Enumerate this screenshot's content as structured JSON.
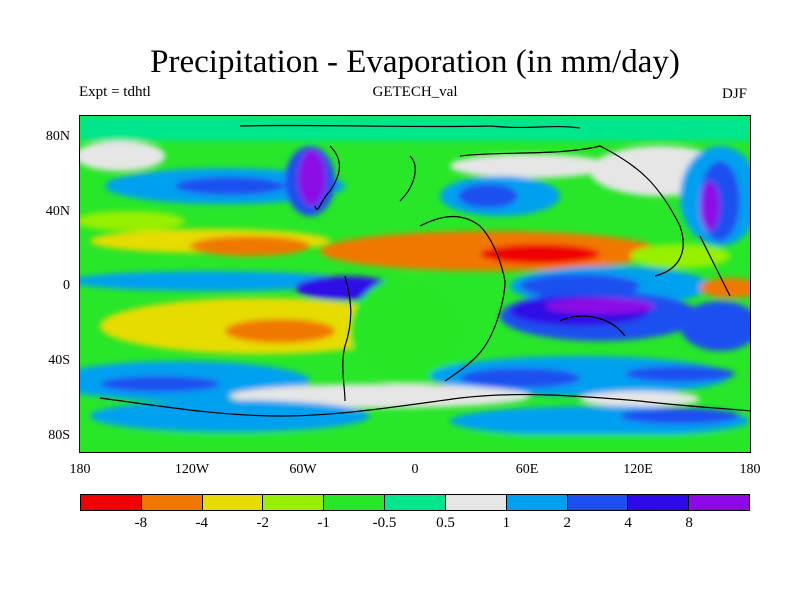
{
  "title": "Precipitation - Evaporation (in mm/day)",
  "subtitle_left": "Expt = tdhtl",
  "subtitle_center": "GETECH_val",
  "subtitle_right": "DJF",
  "y_labels": [
    "80N",
    "40N",
    "0",
    "40S",
    "80S"
  ],
  "x_labels": [
    "180",
    "120W",
    "60W",
    "0",
    "60E",
    "120E",
    "180"
  ],
  "colorbar": {
    "colors": [
      "#f00000",
      "#f07800",
      "#e6dc00",
      "#96f000",
      "#28e628",
      "#00e68c",
      "#e6e6e6",
      "#00a0f0",
      "#1e50f0",
      "#2d0ae6",
      "#8c0ae6"
    ],
    "labels": [
      "-8",
      "-4",
      "-2",
      "-1",
      "-0.5",
      "0.5",
      "1",
      "2",
      "4",
      "8"
    ]
  }
}
